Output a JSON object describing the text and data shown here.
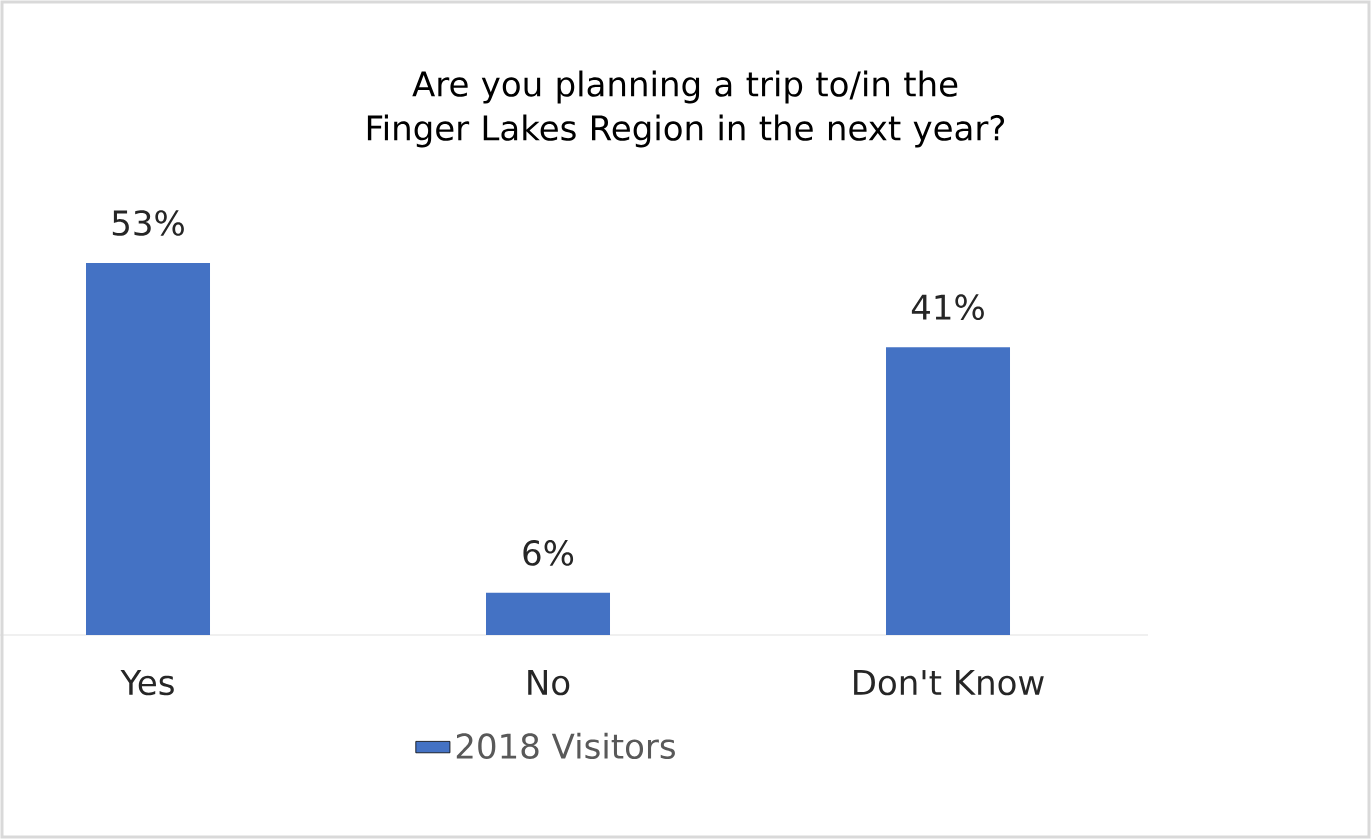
{
  "chart_data": {
    "type": "bar",
    "title": "Are you planning a trip to/in the Finger Lakes Region in the next year?",
    "categories": [
      "Yes",
      "No",
      "Don't Know"
    ],
    "series": [
      {
        "name": "2018 Visitors",
        "color": "#4472c4",
        "values": [
          53,
          6,
          41
        ],
        "value_labels": [
          "53%",
          "6%",
          "41%"
        ]
      }
    ],
    "legend": "bottom"
  }
}
